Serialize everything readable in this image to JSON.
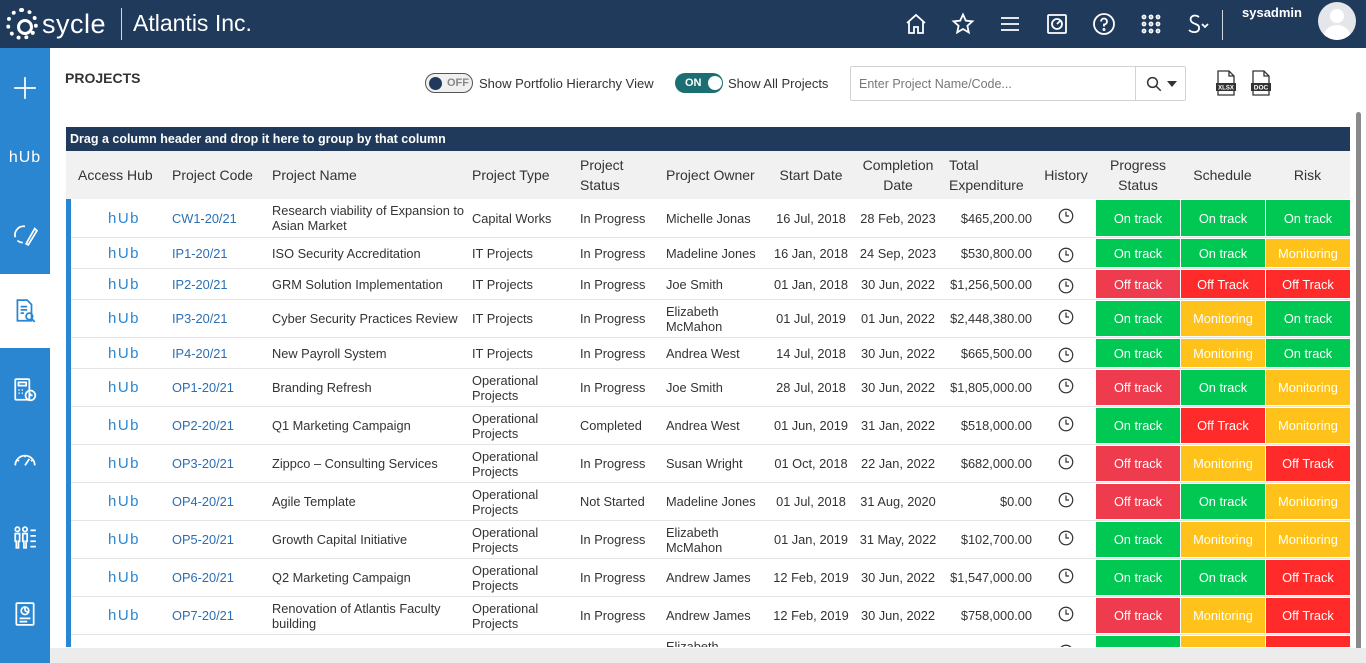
{
  "app": {
    "logo_text": "sycle",
    "company": "Atlantis Inc.",
    "username": "sysadmin",
    "top_icons": [
      "home-icon",
      "star-icon",
      "menu-icon",
      "dashboard-icon",
      "help-icon",
      "apps-grid-icon",
      "shortcuts-icon"
    ]
  },
  "sidebar": {
    "items": [
      "add-icon",
      "hub-icon",
      "edit-cycle-icon",
      "project-search-icon",
      "calculator-clock-icon",
      "gauge-icon",
      "people-chart-icon",
      "report-icon"
    ],
    "hub_label": "hUb"
  },
  "header": {
    "title": "PROJECTS",
    "portfolio_toggle": {
      "state": "OFF",
      "label": "Show Portfolio Hierarchy View"
    },
    "all_projects_toggle": {
      "state": "ON",
      "label": "Show All Projects"
    },
    "search": {
      "placeholder": "Enter Project Name/Code...",
      "value": ""
    },
    "export": {
      "xlsx": "XLSX",
      "doc": "DOC"
    }
  },
  "grid": {
    "group_hint": "Drag a column header and drop it here to group by that column",
    "hub_label": "hUb",
    "columns": {
      "access_hub": "Access Hub",
      "code": "Project Code",
      "name": "Project Name",
      "type": "Project Type",
      "status": "Project Status",
      "owner": "Project Owner",
      "start": "Start Date",
      "completion": "Completion Date",
      "expenditure": "Total Expenditure",
      "history": "History",
      "progress": "Progress Status",
      "schedule": "Schedule",
      "risk": "Risk"
    },
    "rows": [
      {
        "code": "CW1-20/21",
        "name": "Research viability of Expansion to Asian Market",
        "type": "Capital Works",
        "status": "In Progress",
        "owner": "Michelle Jonas",
        "start": "16 Jul, 2018",
        "completion": "28 Feb, 2023",
        "expenditure": "$465,200.00",
        "progress": "On track",
        "schedule": "On track",
        "risk": "On track",
        "pc": "green",
        "sc": "green",
        "rc": "green"
      },
      {
        "code": "IP1-20/21",
        "name": "ISO Security Accreditation",
        "type": "IT Projects",
        "status": "In Progress",
        "owner": "Madeline Jones",
        "start": "16 Jan, 2018",
        "completion": "24 Sep, 2023",
        "expenditure": "$530,800.00",
        "progress": "On track",
        "schedule": "On track",
        "risk": "Monitoring",
        "pc": "green",
        "sc": "green",
        "rc": "yellow"
      },
      {
        "code": "IP2-20/21",
        "name": "GRM Solution Implementation",
        "type": "IT Projects",
        "status": "In Progress",
        "owner": "Joe Smith",
        "start": "01 Jan, 2018",
        "completion": "30 Jun, 2022",
        "expenditure": "$1,256,500.00",
        "progress": "Off track",
        "schedule": "Off Track",
        "risk": "Off Track",
        "pc": "red",
        "sc": "brightred",
        "rc": "brightred"
      },
      {
        "code": "IP3-20/21",
        "name": "Cyber Security Practices Review",
        "type": "IT Projects",
        "status": "In Progress",
        "owner": "Elizabeth McMahon",
        "start": "01 Jul, 2019",
        "completion": "01 Jun, 2022",
        "expenditure": "$2,448,380.00",
        "progress": "On track",
        "schedule": "Monitoring",
        "risk": "On track",
        "pc": "green",
        "sc": "yellow",
        "rc": "green"
      },
      {
        "code": "IP4-20/21",
        "name": "New Payroll System",
        "type": "IT Projects",
        "status": "In Progress",
        "owner": "Andrea West",
        "start": "14 Jul, 2018",
        "completion": "30 Jun, 2022",
        "expenditure": "$665,500.00",
        "progress": "On track",
        "schedule": "Monitoring",
        "risk": "On track",
        "pc": "green",
        "sc": "yellow",
        "rc": "green"
      },
      {
        "code": "OP1-20/21",
        "name": "Branding Refresh",
        "type": "Operational Projects",
        "status": "In Progress",
        "owner": "Joe Smith",
        "start": "28 Jul, 2018",
        "completion": "30 Jun, 2022",
        "expenditure": "$1,805,000.00",
        "progress": "Off track",
        "schedule": "On track",
        "risk": "Monitoring",
        "pc": "red",
        "sc": "green",
        "rc": "yellow"
      },
      {
        "code": "OP2-20/21",
        "name": "Q1 Marketing Campaign",
        "type": "Operational Projects",
        "status": "Completed",
        "owner": "Andrea West",
        "start": "01 Jun, 2019",
        "completion": "31 Jan, 2022",
        "expenditure": "$518,000.00",
        "progress": "On track",
        "schedule": "Off Track",
        "risk": "Monitoring",
        "pc": "green",
        "sc": "brightred",
        "rc": "yellow"
      },
      {
        "code": "OP3-20/21",
        "name": "Zippco – Consulting Services",
        "type": "Operational Projects",
        "status": "In Progress",
        "owner": "Susan Wright",
        "start": "01 Oct, 2018",
        "completion": "22 Jan, 2022",
        "expenditure": "$682,000.00",
        "progress": "Off track",
        "schedule": "Monitoring",
        "risk": "Off Track",
        "pc": "red",
        "sc": "yellow",
        "rc": "brightred"
      },
      {
        "code": "OP4-20/21",
        "name": "Agile Template",
        "type": "Operational Projects",
        "status": "Not Started",
        "owner": "Madeline Jones",
        "start": "01 Jul, 2018",
        "completion": "31 Aug, 2020",
        "expenditure": "$0.00",
        "progress": "Off track",
        "schedule": "On track",
        "risk": "Monitoring",
        "pc": "red",
        "sc": "green",
        "rc": "yellow"
      },
      {
        "code": "OP5-20/21",
        "name": "Growth Capital Initiative",
        "type": "Operational Projects",
        "status": "In Progress",
        "owner": "Elizabeth McMahon",
        "start": "01 Jan, 2019",
        "completion": "31 May, 2022",
        "expenditure": "$102,700.00",
        "progress": "On track",
        "schedule": "Monitoring",
        "risk": "Monitoring",
        "pc": "green",
        "sc": "yellow",
        "rc": "yellow"
      },
      {
        "code": "OP6-20/21",
        "name": "Q2 Marketing Campaign",
        "type": "Operational Projects",
        "status": "In Progress",
        "owner": "Andrew James",
        "start": "12 Feb, 2019",
        "completion": "30 Jun, 2022",
        "expenditure": "$1,547,000.00",
        "progress": "On track",
        "schedule": "On track",
        "risk": "Off Track",
        "pc": "green",
        "sc": "green",
        "rc": "brightred"
      },
      {
        "code": "OP7-20/21",
        "name": "Renovation of Atlantis Faculty building",
        "type": "Operational Projects",
        "status": "In Progress",
        "owner": "Andrew James",
        "start": "12 Feb, 2019",
        "completion": "30 Jun, 2022",
        "expenditure": "$758,000.00",
        "progress": "Off track",
        "schedule": "Monitoring",
        "risk": "Off Track",
        "pc": "red",
        "sc": "yellow",
        "rc": "brightred"
      },
      {
        "code": "",
        "name": "",
        "type": "",
        "status": "",
        "owner": "Elizabeth",
        "start": "",
        "completion": "",
        "expenditure": "",
        "progress": "",
        "schedule": "",
        "risk": "",
        "pc": "green",
        "sc": "yellow",
        "rc": "brightred"
      }
    ]
  }
}
